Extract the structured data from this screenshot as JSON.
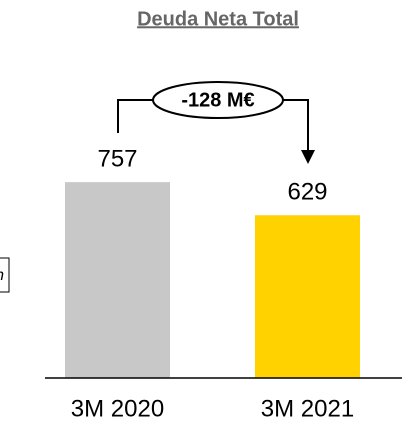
{
  "chart_data": {
    "type": "bar",
    "title": "Deuda Neta Total",
    "categories": [
      "3M 2020",
      "3M 2021"
    ],
    "values": [
      757,
      629
    ],
    "colors": [
      "#c8c8c8",
      "#ffd200"
    ],
    "ylim": [
      0,
      800
    ],
    "annotations": [
      "-128 M€",
      "n"
    ]
  }
}
